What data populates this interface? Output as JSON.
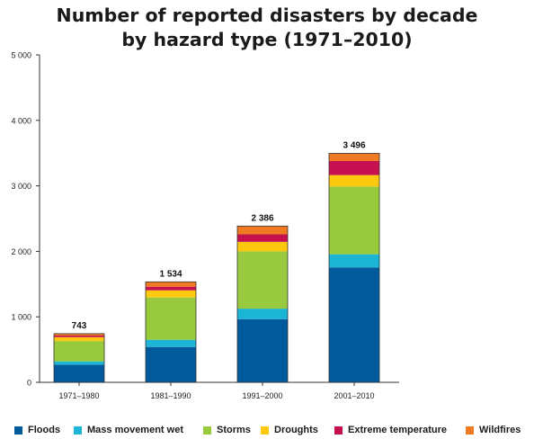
{
  "chart_data": {
    "type": "bar",
    "stacked": true,
    "title_lines": [
      "Number of reported disasters by decade",
      "by hazard type (1971–2010)"
    ],
    "categories": [
      "1971–1980",
      "1981–1990",
      "1991–2000",
      "2001–2010"
    ],
    "series": [
      {
        "name": "Floods",
        "color": "#005a9c",
        "values": [
          270,
          540,
          965,
          1755
        ]
      },
      {
        "name": "Mass movement wet",
        "color": "#1cb5d5",
        "values": [
          50,
          110,
          160,
          200
        ]
      },
      {
        "name": "Storms",
        "color": "#99c93c",
        "values": [
          310,
          645,
          875,
          1035
        ]
      },
      {
        "name": "Droughts",
        "color": "#fcc90f",
        "values": [
          60,
          110,
          145,
          175
        ]
      },
      {
        "name": "Extreme temperature",
        "color": "#c6104f",
        "values": [
          25,
          55,
          115,
          215
        ]
      },
      {
        "name": "Wildfires",
        "color": "#ef7a22",
        "values": [
          28,
          74,
          126,
          116
        ]
      }
    ],
    "totals": [
      743,
      1534,
      2386,
      3496
    ],
    "total_labels": [
      "743",
      "1 534",
      "2 386",
      "3 496"
    ],
    "ylim": [
      0,
      5000
    ],
    "y_ticks": [
      0,
      1000,
      2000,
      3000,
      4000,
      5000
    ],
    "y_tick_labels": [
      "0",
      "1 000",
      "2 000",
      "3 000",
      "4 000",
      "5 000"
    ],
    "grid": false,
    "legend_position": "bottom"
  }
}
